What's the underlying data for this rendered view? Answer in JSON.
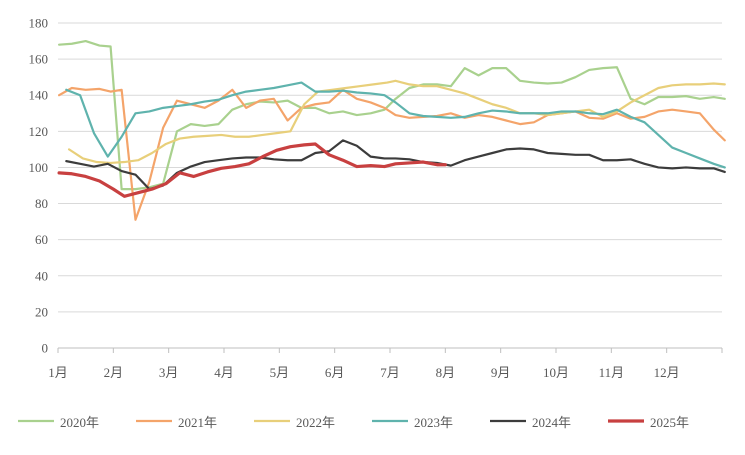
{
  "chart_data": {
    "type": "line",
    "title": "",
    "xlabel": "",
    "ylabel": "",
    "ylim": [
      0,
      180
    ],
    "yticks": [
      0,
      20,
      40,
      60,
      80,
      100,
      120,
      140,
      160,
      180
    ],
    "grid": "horizontal",
    "legend_position": "bottom",
    "categories": [
      "1月",
      "2月",
      "3月",
      "4月",
      "5月",
      "6月",
      "7月",
      "8月",
      "9月",
      "10月",
      "11月",
      "12月"
    ],
    "series": [
      {
        "name": "2020年",
        "color": "#a9d18e",
        "width": 2.2,
        "points": [
          [
            0.02,
            168
          ],
          [
            0.25,
            168.5
          ],
          [
            0.5,
            170
          ],
          [
            0.75,
            167.5
          ],
          [
            0.95,
            167
          ],
          [
            1.15,
            88
          ],
          [
            1.4,
            88
          ],
          [
            1.65,
            89
          ],
          [
            1.9,
            91
          ],
          [
            2.15,
            120
          ],
          [
            2.4,
            124
          ],
          [
            2.65,
            123
          ],
          [
            2.9,
            124
          ],
          [
            3.15,
            132
          ],
          [
            3.4,
            135
          ],
          [
            3.65,
            136.5
          ],
          [
            3.9,
            136
          ],
          [
            4.15,
            137
          ],
          [
            4.4,
            133
          ],
          [
            4.65,
            133
          ],
          [
            4.9,
            130
          ],
          [
            5.15,
            131
          ],
          [
            5.4,
            129
          ],
          [
            5.65,
            130
          ],
          [
            5.9,
            132
          ],
          [
            6.1,
            138
          ],
          [
            6.35,
            144
          ],
          [
            6.6,
            146
          ],
          [
            6.85,
            146
          ],
          [
            7.1,
            145
          ],
          [
            7.35,
            155
          ],
          [
            7.6,
            151
          ],
          [
            7.85,
            155
          ],
          [
            8.1,
            155
          ],
          [
            8.35,
            148
          ],
          [
            8.6,
            147
          ],
          [
            8.85,
            146.5
          ],
          [
            9.1,
            147
          ],
          [
            9.35,
            150
          ],
          [
            9.6,
            154
          ],
          [
            9.85,
            155
          ],
          [
            10.1,
            155.5
          ],
          [
            10.35,
            138
          ],
          [
            10.6,
            135
          ],
          [
            10.85,
            139
          ],
          [
            11.1,
            139
          ],
          [
            11.35,
            139.5
          ],
          [
            11.6,
            138
          ],
          [
            11.85,
            139
          ],
          [
            12.05,
            138
          ]
        ]
      },
      {
        "name": "2021年",
        "color": "#f4a46a",
        "width": 2.2,
        "points": [
          [
            0.02,
            140
          ],
          [
            0.25,
            144
          ],
          [
            0.5,
            143
          ],
          [
            0.75,
            143.5
          ],
          [
            0.95,
            142
          ],
          [
            1.15,
            143
          ],
          [
            1.4,
            71
          ],
          [
            1.65,
            92
          ],
          [
            1.9,
            122
          ],
          [
            2.15,
            137
          ],
          [
            2.4,
            135
          ],
          [
            2.65,
            133
          ],
          [
            2.9,
            137
          ],
          [
            3.15,
            143
          ],
          [
            3.4,
            133
          ],
          [
            3.65,
            137
          ],
          [
            3.9,
            138
          ],
          [
            4.15,
            126
          ],
          [
            4.4,
            133
          ],
          [
            4.65,
            135
          ],
          [
            4.9,
            136
          ],
          [
            5.15,
            143
          ],
          [
            5.4,
            138
          ],
          [
            5.65,
            136
          ],
          [
            5.9,
            133
          ],
          [
            6.1,
            129
          ],
          [
            6.35,
            127.5
          ],
          [
            6.6,
            128
          ],
          [
            6.85,
            128.5
          ],
          [
            7.1,
            130
          ],
          [
            7.35,
            127.5
          ],
          [
            7.6,
            129
          ],
          [
            7.85,
            128
          ],
          [
            8.1,
            126
          ],
          [
            8.35,
            124
          ],
          [
            8.6,
            125
          ],
          [
            8.85,
            129
          ],
          [
            9.1,
            130
          ],
          [
            9.35,
            131
          ],
          [
            9.6,
            127.5
          ],
          [
            9.85,
            127
          ],
          [
            10.1,
            130
          ],
          [
            10.35,
            127
          ],
          [
            10.6,
            128
          ],
          [
            10.85,
            131
          ],
          [
            11.1,
            132
          ],
          [
            11.35,
            131
          ],
          [
            11.6,
            130
          ],
          [
            11.85,
            121
          ],
          [
            12.05,
            115
          ]
        ]
      },
      {
        "name": "2022年",
        "color": "#e8cf7a",
        "width": 2.2,
        "points": [
          [
            0.2,
            110
          ],
          [
            0.45,
            105
          ],
          [
            0.7,
            103
          ],
          [
            0.95,
            102.5
          ],
          [
            1.2,
            103
          ],
          [
            1.45,
            104
          ],
          [
            1.7,
            108
          ],
          [
            1.95,
            113
          ],
          [
            2.2,
            116
          ],
          [
            2.45,
            117
          ],
          [
            2.7,
            117.5
          ],
          [
            2.95,
            118
          ],
          [
            3.2,
            117
          ],
          [
            3.45,
            117
          ],
          [
            3.7,
            118
          ],
          [
            3.95,
            119
          ],
          [
            4.2,
            120
          ],
          [
            4.45,
            135
          ],
          [
            4.7,
            142
          ],
          [
            4.95,
            143
          ],
          [
            5.2,
            144
          ],
          [
            5.45,
            145
          ],
          [
            5.7,
            146
          ],
          [
            5.95,
            147
          ],
          [
            6.1,
            148
          ],
          [
            6.35,
            146
          ],
          [
            6.6,
            145
          ],
          [
            6.85,
            145
          ],
          [
            7.1,
            143
          ],
          [
            7.35,
            141
          ],
          [
            7.6,
            138
          ],
          [
            7.85,
            135
          ],
          [
            8.1,
            133
          ],
          [
            8.35,
            130
          ],
          [
            8.6,
            130
          ],
          [
            8.85,
            129
          ],
          [
            9.1,
            130
          ],
          [
            9.35,
            131
          ],
          [
            9.6,
            132
          ],
          [
            9.85,
            128
          ],
          [
            10.1,
            131
          ],
          [
            10.35,
            136
          ],
          [
            10.6,
            140
          ],
          [
            10.85,
            144
          ],
          [
            11.1,
            145.5
          ],
          [
            11.35,
            146
          ],
          [
            11.6,
            146
          ],
          [
            11.85,
            146.5
          ],
          [
            12.05,
            146
          ]
        ]
      },
      {
        "name": "2023年",
        "color": "#5fb3ad",
        "width": 2.2,
        "points": [
          [
            0.15,
            143
          ],
          [
            0.4,
            140
          ],
          [
            0.65,
            119
          ],
          [
            0.9,
            106
          ],
          [
            1.15,
            117
          ],
          [
            1.4,
            130
          ],
          [
            1.65,
            131
          ],
          [
            1.9,
            133
          ],
          [
            2.15,
            134
          ],
          [
            2.4,
            135
          ],
          [
            2.65,
            136.5
          ],
          [
            2.9,
            137.5
          ],
          [
            3.15,
            140
          ],
          [
            3.4,
            142
          ],
          [
            3.65,
            143
          ],
          [
            3.9,
            144
          ],
          [
            4.15,
            145.5
          ],
          [
            4.4,
            147
          ],
          [
            4.65,
            142
          ],
          [
            4.9,
            142
          ],
          [
            5.15,
            142.5
          ],
          [
            5.4,
            141.5
          ],
          [
            5.65,
            141
          ],
          [
            5.9,
            140
          ],
          [
            6.1,
            136
          ],
          [
            6.35,
            130
          ],
          [
            6.6,
            128.5
          ],
          [
            6.85,
            128
          ],
          [
            7.1,
            127.5
          ],
          [
            7.35,
            128
          ],
          [
            7.6,
            130
          ],
          [
            7.85,
            131.5
          ],
          [
            8.1,
            131
          ],
          [
            8.35,
            130
          ],
          [
            8.6,
            130
          ],
          [
            8.85,
            130
          ],
          [
            9.1,
            131
          ],
          [
            9.35,
            131
          ],
          [
            9.6,
            130
          ],
          [
            9.85,
            129.5
          ],
          [
            10.1,
            132
          ],
          [
            10.35,
            128
          ],
          [
            10.6,
            125
          ],
          [
            10.85,
            118
          ],
          [
            11.1,
            111
          ],
          [
            11.35,
            108
          ],
          [
            11.6,
            105
          ],
          [
            11.85,
            102
          ],
          [
            12.05,
            100
          ]
        ]
      },
      {
        "name": "2024年",
        "color": "#3c3c3c",
        "width": 2.2,
        "points": [
          [
            0.15,
            103.5
          ],
          [
            0.4,
            102
          ],
          [
            0.65,
            100.5
          ],
          [
            0.9,
            102
          ],
          [
            1.15,
            98
          ],
          [
            1.4,
            96
          ],
          [
            1.65,
            88
          ],
          [
            1.9,
            90
          ],
          [
            2.15,
            97
          ],
          [
            2.4,
            100.5
          ],
          [
            2.65,
            103
          ],
          [
            2.9,
            104
          ],
          [
            3.15,
            105
          ],
          [
            3.4,
            105.5
          ],
          [
            3.65,
            105.5
          ],
          [
            3.9,
            104.5
          ],
          [
            4.15,
            104
          ],
          [
            4.4,
            104
          ],
          [
            4.65,
            108
          ],
          [
            4.9,
            109
          ],
          [
            5.15,
            115
          ],
          [
            5.4,
            112
          ],
          [
            5.65,
            106
          ],
          [
            5.9,
            105
          ],
          [
            6.1,
            105
          ],
          [
            6.35,
            104.5
          ],
          [
            6.6,
            103
          ],
          [
            6.85,
            102.5
          ],
          [
            7.1,
            101
          ],
          [
            7.35,
            104
          ],
          [
            7.6,
            106
          ],
          [
            7.85,
            108
          ],
          [
            8.1,
            110
          ],
          [
            8.35,
            110.5
          ],
          [
            8.6,
            110
          ],
          [
            8.85,
            108
          ],
          [
            9.1,
            107.5
          ],
          [
            9.35,
            107
          ],
          [
            9.6,
            107
          ],
          [
            9.85,
            104
          ],
          [
            10.1,
            104
          ],
          [
            10.35,
            104.5
          ],
          [
            10.6,
            102
          ],
          [
            10.85,
            100
          ],
          [
            11.1,
            99.5
          ],
          [
            11.35,
            100
          ],
          [
            11.6,
            99.5
          ],
          [
            11.85,
            99.5
          ],
          [
            12.05,
            97.5
          ]
        ]
      },
      {
        "name": "2025年",
        "color": "#c84040",
        "width": 3.2,
        "points": [
          [
            0.02,
            97
          ],
          [
            0.25,
            96.5
          ],
          [
            0.5,
            95
          ],
          [
            0.75,
            92.5
          ],
          [
            1.0,
            88
          ],
          [
            1.2,
            84
          ],
          [
            1.45,
            86
          ],
          [
            1.7,
            88
          ],
          [
            1.95,
            91
          ],
          [
            2.2,
            97
          ],
          [
            2.45,
            95
          ],
          [
            2.7,
            97.5
          ],
          [
            2.95,
            99.5
          ],
          [
            3.2,
            100.5
          ],
          [
            3.45,
            102
          ],
          [
            3.7,
            106
          ],
          [
            3.95,
            109.5
          ],
          [
            4.2,
            111.5
          ],
          [
            4.45,
            112.5
          ],
          [
            4.65,
            113
          ],
          [
            4.9,
            107
          ],
          [
            5.15,
            104
          ],
          [
            5.4,
            100.5
          ],
          [
            5.65,
            101
          ],
          [
            5.9,
            100.5
          ],
          [
            6.1,
            102
          ],
          [
            6.35,
            102.5
          ],
          [
            6.6,
            103
          ],
          [
            6.85,
            101.5
          ],
          [
            7.0,
            101.5
          ]
        ]
      }
    ]
  }
}
